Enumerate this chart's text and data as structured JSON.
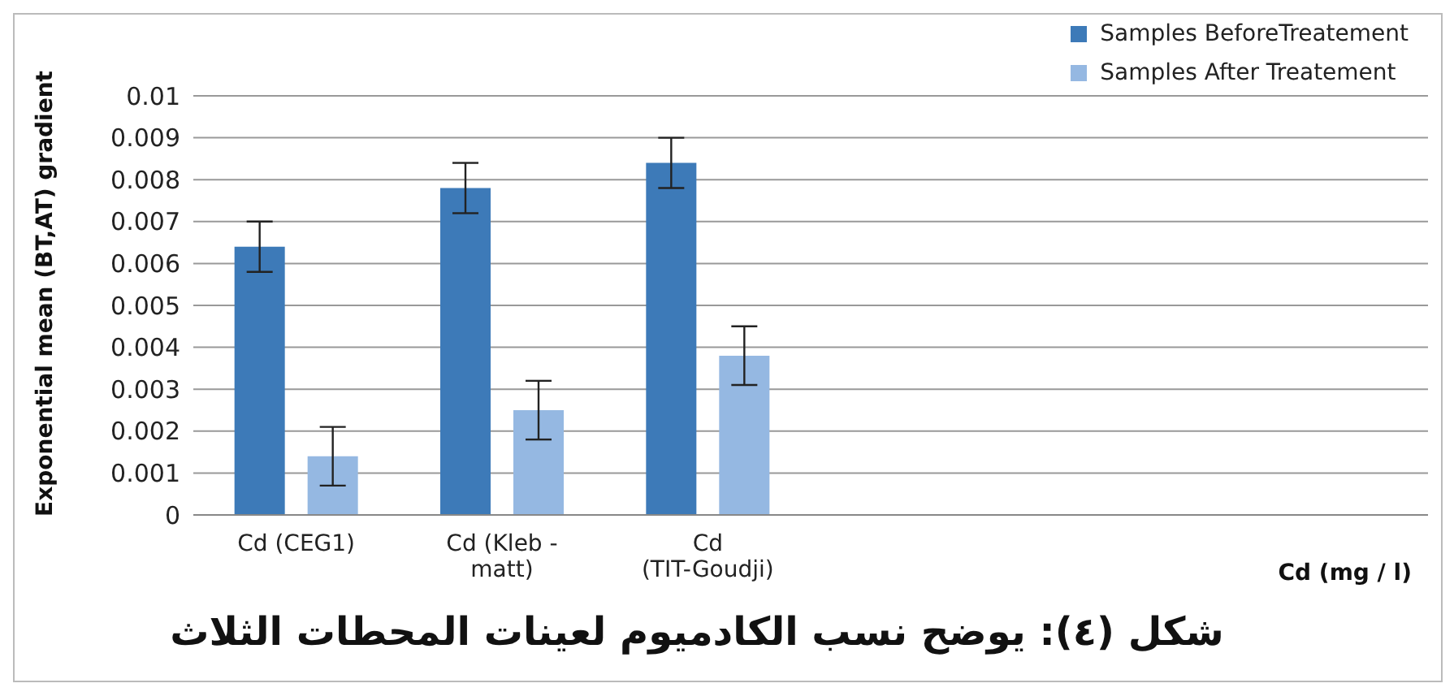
{
  "chart_data": {
    "type": "bar",
    "title": "شكل (٤): يوضح نسب الكادميوم  لعينات المحطات الثلاث",
    "xlabel": "Cd (mg / l)",
    "ylabel": "Exponential mean (BT,AT) gradient",
    "categories": [
      "Cd (CEG1)",
      "Cd (Kleb - matt)",
      "Cd (TIT-Goudji)",
      null,
      null,
      null
    ],
    "series": [
      {
        "name": "Samples BeforeTreatement",
        "color": "#3d7ab8",
        "values": [
          0.0064,
          0.0078,
          0.0084,
          null,
          null,
          null
        ],
        "errors": [
          0.0006,
          0.0006,
          0.0006,
          null,
          null,
          null
        ]
      },
      {
        "name": "Samples After Treatement",
        "color": "#95b8e2",
        "values": [
          0.0014,
          0.0025,
          0.0038,
          null,
          null,
          null
        ],
        "errors": [
          0.0007,
          0.0007,
          0.0007,
          null,
          null,
          null
        ]
      }
    ],
    "ylim": [
      0,
      0.01
    ],
    "yticks": [
      0,
      0.001,
      0.002,
      0.003,
      0.004,
      0.005,
      0.006,
      0.007,
      0.008,
      0.009,
      0.01
    ],
    "grid": "y",
    "legend": "top right"
  }
}
